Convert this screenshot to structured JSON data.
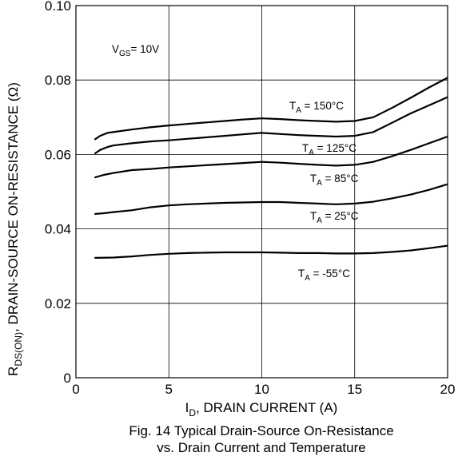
{
  "chart_data": {
    "type": "line",
    "xlim": [
      0,
      20
    ],
    "ylim": [
      0,
      0.1
    ],
    "x_ticks": [
      "0",
      "5",
      "10",
      "15",
      "20"
    ],
    "y_ticks": [
      "0",
      "0.02",
      "0.04",
      "0.06",
      "0.08",
      "0.10"
    ],
    "grid": true,
    "xlabel": {
      "main": "I",
      "sub": "D",
      "rest": ", DRAIN CURRENT (A)"
    },
    "ylabel": {
      "main": "R",
      "sub": "DS(ON)",
      "rest": ", DRAIN-SOURCE ON-RESISTANCE (Ω)"
    },
    "condition": {
      "main": "V",
      "sub": "GS",
      "rest": "= 10V"
    },
    "series": [
      {
        "name": "150°C",
        "label_main": "T",
        "label_sub": "A",
        "label_rest": " = 150°C",
        "points": [
          [
            1,
            0.064
          ],
          [
            1.3,
            0.065
          ],
          [
            1.7,
            0.0658
          ],
          [
            2,
            0.066
          ],
          [
            3,
            0.0667
          ],
          [
            4,
            0.0673
          ],
          [
            5,
            0.0678
          ],
          [
            6,
            0.0682
          ],
          [
            7,
            0.0686
          ],
          [
            8,
            0.069
          ],
          [
            9,
            0.0694
          ],
          [
            10,
            0.0697
          ],
          [
            11,
            0.0695
          ],
          [
            12,
            0.0692
          ],
          [
            13,
            0.069
          ],
          [
            14,
            0.0688
          ],
          [
            15,
            0.069
          ],
          [
            16,
            0.07
          ],
          [
            17,
            0.0725
          ],
          [
            18,
            0.0752
          ],
          [
            19,
            0.078
          ],
          [
            20,
            0.0806
          ]
        ]
      },
      {
        "name": "125°C",
        "label_main": "T",
        "label_sub": "A",
        "label_rest": " = 125°C",
        "points": [
          [
            1,
            0.0602
          ],
          [
            1.3,
            0.0612
          ],
          [
            1.7,
            0.062
          ],
          [
            2,
            0.0624
          ],
          [
            3,
            0.063
          ],
          [
            4,
            0.0635
          ],
          [
            5,
            0.0638
          ],
          [
            6,
            0.0642
          ],
          [
            7,
            0.0646
          ],
          [
            8,
            0.065
          ],
          [
            9,
            0.0654
          ],
          [
            10,
            0.0658
          ],
          [
            11,
            0.0655
          ],
          [
            12,
            0.0652
          ],
          [
            13,
            0.065
          ],
          [
            14,
            0.0648
          ],
          [
            15,
            0.065
          ],
          [
            16,
            0.066
          ],
          [
            17,
            0.0685
          ],
          [
            18,
            0.071
          ],
          [
            19,
            0.0732
          ],
          [
            20,
            0.0754
          ]
        ]
      },
      {
        "name": "85°C",
        "label_main": "T",
        "label_sub": "A",
        "label_rest": " = 85°C",
        "points": [
          [
            1,
            0.0538
          ],
          [
            1.5,
            0.0545
          ],
          [
            2,
            0.055
          ],
          [
            3,
            0.0558
          ],
          [
            4,
            0.0561
          ],
          [
            5,
            0.0565
          ],
          [
            6,
            0.0568
          ],
          [
            7,
            0.0571
          ],
          [
            8,
            0.0574
          ],
          [
            9,
            0.0577
          ],
          [
            10,
            0.058
          ],
          [
            11,
            0.0578
          ],
          [
            12,
            0.0575
          ],
          [
            13,
            0.0572
          ],
          [
            14,
            0.057
          ],
          [
            15,
            0.0572
          ],
          [
            16,
            0.058
          ],
          [
            17,
            0.0595
          ],
          [
            18,
            0.0612
          ],
          [
            19,
            0.063
          ],
          [
            20,
            0.0648
          ]
        ]
      },
      {
        "name": "25°C",
        "label_main": "T",
        "label_sub": "A",
        "label_rest": " = 25°C",
        "points": [
          [
            1,
            0.044
          ],
          [
            1.5,
            0.0442
          ],
          [
            2,
            0.0445
          ],
          [
            3,
            0.045
          ],
          [
            4,
            0.0458
          ],
          [
            5,
            0.0463
          ],
          [
            6,
            0.0466
          ],
          [
            7,
            0.0468
          ],
          [
            8,
            0.047
          ],
          [
            9,
            0.0471
          ],
          [
            10,
            0.0472
          ],
          [
            11,
            0.0472
          ],
          [
            12,
            0.047
          ],
          [
            13,
            0.0468
          ],
          [
            14,
            0.0466
          ],
          [
            15,
            0.0468
          ],
          [
            16,
            0.0473
          ],
          [
            17,
            0.0482
          ],
          [
            18,
            0.0492
          ],
          [
            19,
            0.0505
          ],
          [
            20,
            0.052
          ]
        ]
      },
      {
        "name": "-55°C",
        "label_main": "T",
        "label_sub": "A",
        "label_rest": " = -55°C",
        "points": [
          [
            1,
            0.0322
          ],
          [
            2,
            0.0323
          ],
          [
            3,
            0.0326
          ],
          [
            4,
            0.033
          ],
          [
            5,
            0.0333
          ],
          [
            6,
            0.0335
          ],
          [
            7,
            0.0336
          ],
          [
            8,
            0.0337
          ],
          [
            9,
            0.0337
          ],
          [
            10,
            0.0337
          ],
          [
            11,
            0.0336
          ],
          [
            12,
            0.0335
          ],
          [
            13,
            0.0335
          ],
          [
            14,
            0.0334
          ],
          [
            15,
            0.0334
          ],
          [
            16,
            0.0335
          ],
          [
            17,
            0.0338
          ],
          [
            18,
            0.0342
          ],
          [
            19,
            0.0348
          ],
          [
            20,
            0.0355
          ]
        ]
      }
    ]
  },
  "caption": {
    "line1": "Fig. 14  Typical Drain-Source On-Resistance",
    "line2": "vs. Drain Current and Temperature"
  }
}
